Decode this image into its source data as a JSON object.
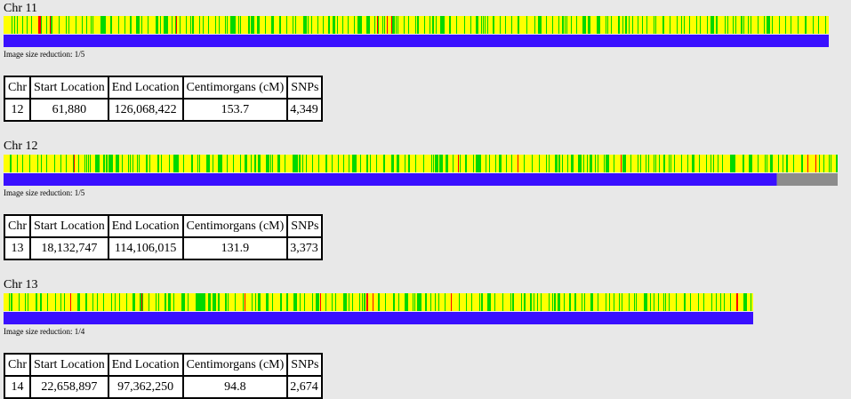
{
  "colors": {
    "yellow": "#ffff00",
    "green": "#00d800",
    "red": "#ff0000",
    "blue": "#3a10ff",
    "gray": "#8c8c8c"
  },
  "columns": [
    "Chr",
    "Start Location",
    "End Location",
    "Centimorgans (cM)",
    "SNPs"
  ],
  "chromosomes": [
    {
      "label": "Chr 11",
      "reduction": "Image size reduction: 1/5",
      "blue_fraction": 1.0,
      "gray_fraction": 0.0,
      "seed": 11
    },
    {
      "label": "Chr 12",
      "reduction": "Image size reduction: 1/5",
      "blue_fraction": 0.927,
      "gray_fraction": 0.073,
      "seed": 12
    },
    {
      "label": "Chr 13",
      "reduction": "Image size reduction: 1/4",
      "blue_fraction": 1.0,
      "gray_fraction": 0.0,
      "seed": 13
    }
  ],
  "tables": [
    {
      "chr": "12",
      "start": "61,880",
      "end": "126,068,422",
      "cm": "153.7",
      "snps": "4,349"
    },
    {
      "chr": "13",
      "start": "18,132,747",
      "end": "114,106,015",
      "cm": "131.9",
      "snps": "3,373"
    },
    {
      "chr": "14",
      "start": "22,658,897",
      "end": "97,362,250",
      "cm": "94.8",
      "snps": "2,674"
    }
  ]
}
